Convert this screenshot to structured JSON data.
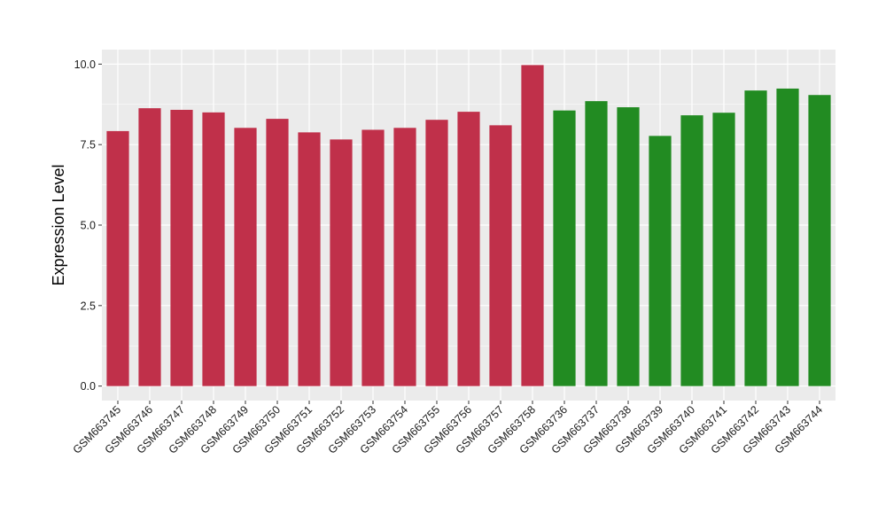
{
  "chart_data": {
    "type": "bar",
    "title": "",
    "xlabel": "",
    "ylabel": "Expression Level",
    "ylim": [
      -0.45,
      10.45
    ],
    "yticks": [
      0.0,
      2.5,
      5.0,
      7.5,
      10.0
    ],
    "ytick_labels": [
      "0.0",
      "2.5",
      "5.0",
      "7.5",
      "10.0"
    ],
    "grid": true,
    "legend": "none",
    "background_color": "#ebebeb",
    "categories": [
      "GSM663745",
      "GSM663746",
      "GSM663747",
      "GSM663748",
      "GSM663749",
      "GSM663750",
      "GSM663751",
      "GSM663752",
      "GSM663753",
      "GSM663754",
      "GSM663755",
      "GSM663756",
      "GSM663757",
      "GSM663758",
      "GSM663736",
      "GSM663737",
      "GSM663738",
      "GSM663739",
      "GSM663740",
      "GSM663741",
      "GSM663742",
      "GSM663743",
      "GSM663744"
    ],
    "values": [
      7.92,
      8.63,
      8.58,
      8.5,
      8.02,
      8.3,
      7.88,
      7.66,
      7.96,
      8.02,
      8.27,
      8.52,
      8.1,
      9.97,
      8.56,
      8.85,
      8.66,
      7.77,
      8.41,
      8.49,
      9.18,
      9.24,
      9.04
    ],
    "bar_colors": [
      "#c0304a",
      "#c0304a",
      "#c0304a",
      "#c0304a",
      "#c0304a",
      "#c0304a",
      "#c0304a",
      "#c0304a",
      "#c0304a",
      "#c0304a",
      "#c0304a",
      "#c0304a",
      "#c0304a",
      "#c0304a",
      "#228b22",
      "#228b22",
      "#228b22",
      "#228b22",
      "#228b22",
      "#228b22",
      "#228b22",
      "#228b22",
      "#228b22"
    ]
  }
}
